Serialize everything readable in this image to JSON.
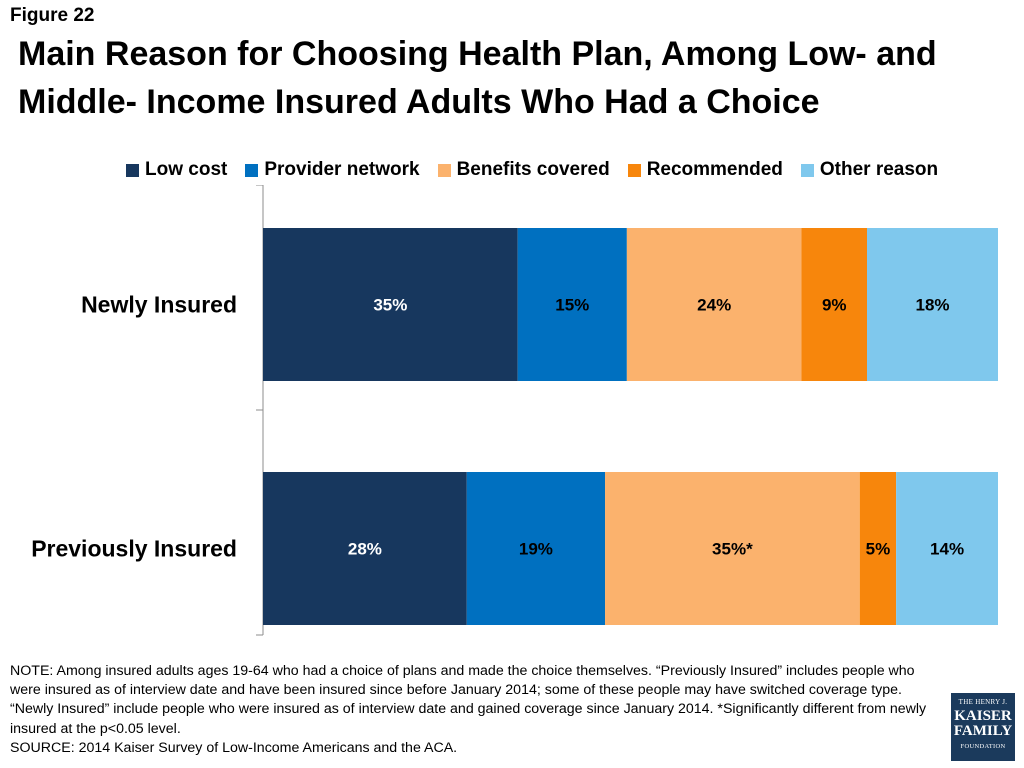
{
  "figure_label": "Figure 22",
  "chart_data": {
    "type": "bar",
    "orientation": "horizontal",
    "stacked": true,
    "title": "Main Reason for Choosing Health Plan, Among Low- and Middle- Income Insured Adults Who Had a Choice",
    "categories": [
      "Newly Insured",
      "Previously Insured"
    ],
    "series": [
      {
        "name": "Low cost",
        "values": [
          35,
          28
        ],
        "labels": [
          "35%",
          "28%"
        ],
        "color": "#17375e"
      },
      {
        "name": "Provider network",
        "values": [
          15,
          19
        ],
        "labels": [
          "15%",
          "19%"
        ],
        "color": "#0070c0"
      },
      {
        "name": "Benefits covered",
        "values": [
          24,
          35
        ],
        "labels": [
          "24%",
          "35%*"
        ],
        "color": "#fbb26d"
      },
      {
        "name": "Recommended",
        "values": [
          9,
          5
        ],
        "labels": [
          "9%",
          "5%"
        ],
        "color": "#f7860c"
      },
      {
        "name": "Other reason",
        "values": [
          18,
          14
        ],
        "labels": [
          "18%",
          "14%"
        ],
        "color": "#7fc8ed"
      }
    ],
    "legend_position": "top",
    "grid": false,
    "xlabel": "",
    "ylabel": ""
  },
  "note_lines": [
    "NOTE: Among insured adults ages 19-64 who had a choice of plans and made the choice themselves. “Previously Insured” includes people who were insured as of interview date and have been insured since before January 2014; some of these people may have switched coverage type. “Newly Insured” include people who were insured as of interview date and gained coverage since January 2014. *Significantly different from newly insured at the p<0.05 level.",
    "SOURCE: 2014 Kaiser Survey of Low-Income Americans and the ACA."
  ],
  "logo": {
    "line1": "THE HENRY J.",
    "line2": "KAISER",
    "line3": "FAMILY",
    "line4": "FOUNDATION"
  }
}
